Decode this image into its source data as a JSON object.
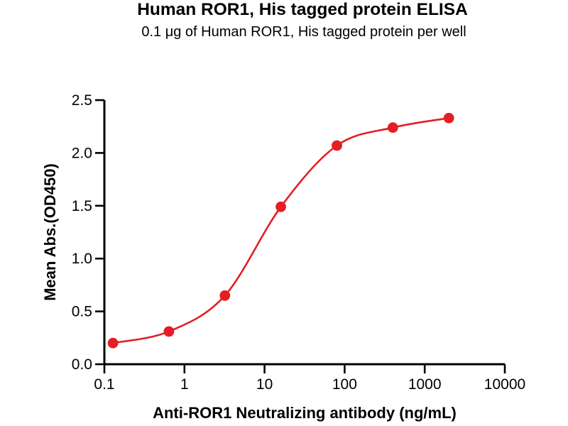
{
  "chart_data": {
    "type": "scatter",
    "curve_fit": "sigmoidal dose-response (4PL)",
    "title": "Human ROR1, His tagged protein ELISA",
    "subtitle": "0.1 μg of Human ROR1, His tagged protein per well",
    "xlabel": "Anti-ROR1 Neutralizing antibody (ng/mL)",
    "ylabel": "Mean Abs.(OD450)",
    "x_scale": "log10",
    "xlim": [
      0.1,
      10000
    ],
    "ylim": [
      0.0,
      2.5
    ],
    "grid": false,
    "legend": "none",
    "x_ticks": {
      "values": [
        0.1,
        1,
        10,
        100,
        1000,
        10000
      ],
      "labels": [
        "0.1",
        "1",
        "10",
        "100",
        "1000",
        "10000"
      ]
    },
    "y_ticks": {
      "values": [
        0.0,
        0.5,
        1.0,
        1.5,
        2.0,
        2.5
      ],
      "labels": [
        "0.0",
        "0.5",
        "1.0",
        "1.5",
        "2.0",
        "2.5"
      ]
    },
    "series": [
      {
        "name": "Anti-ROR1 Neutralizing antibody",
        "marker": "circle",
        "color": "#e31e24",
        "x": [
          0.128,
          0.64,
          3.2,
          16,
          80,
          400,
          2000
        ],
        "y": [
          0.2,
          0.31,
          0.65,
          1.49,
          2.07,
          2.24,
          2.33
        ]
      }
    ]
  },
  "colors": {
    "background": "#ffffff",
    "axis": "#000000",
    "text": "#000000",
    "series_red": "#e31e24"
  }
}
